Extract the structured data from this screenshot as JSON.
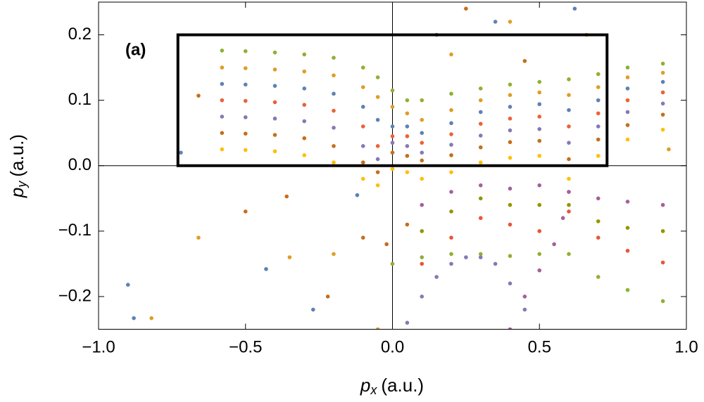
{
  "chart_data": {
    "type": "scatter",
    "panel_label": "(a)",
    "xlabel": [
      "p",
      "x",
      "(a.u.)"
    ],
    "ylabel": [
      "p",
      "y",
      "(a.u.)"
    ],
    "xlim": [
      -1,
      1
    ],
    "ylim": [
      -0.25,
      0.25
    ],
    "xticks": [
      {
        "value": -1,
        "label": "−1.0"
      },
      {
        "value": -0.5,
        "label": "−0.5"
      },
      {
        "value": 0,
        "label": "0.0"
      },
      {
        "value": 0.5,
        "label": "0.5"
      },
      {
        "value": 1,
        "label": "1.0"
      }
    ],
    "yticks": [
      {
        "value": -0.2,
        "label": "−0.2"
      },
      {
        "value": -0.1,
        "label": "−0.1"
      },
      {
        "value": 0,
        "label": "0.0"
      },
      {
        "value": 0.1,
        "label": "0.1"
      },
      {
        "value": 0.2,
        "label": "0.2"
      }
    ],
    "box": {
      "x": [
        -0.73,
        0.73
      ],
      "y": [
        0,
        0.2
      ]
    },
    "series": [
      {
        "color": "#8fb032",
        "x": [
          -0.58,
          -0.5,
          -0.4,
          -0.3,
          -0.2,
          -0.1,
          -0.05,
          0.0,
          0.05,
          0.1,
          0.2,
          0.3,
          0.4,
          0.5,
          0.6,
          0.7,
          0.8,
          0.92
        ],
        "values": [
          0.176,
          0.175,
          0.173,
          0.17,
          0.165,
          0.15,
          0.135,
          0.115,
          0.1,
          0.1,
          0.11,
          0.118,
          0.124,
          0.128,
          0.132,
          0.14,
          0.15,
          0.156
        ]
      },
      {
        "color": "#e19c24",
        "x": [
          -0.58,
          -0.5,
          -0.4,
          -0.3,
          -0.2,
          -0.1,
          -0.05,
          0.0,
          0.05,
          0.1,
          0.2,
          0.3,
          0.4,
          0.5,
          0.6,
          0.7,
          0.8,
          0.92
        ],
        "values": [
          0.15,
          0.149,
          0.147,
          0.144,
          0.138,
          0.12,
          0.105,
          0.09,
          0.08,
          0.07,
          0.085,
          0.1,
          0.108,
          0.112,
          0.108,
          0.12,
          0.135,
          0.142
        ]
      },
      {
        "color": "#5e81b5",
        "x": [
          -0.58,
          -0.5,
          -0.4,
          -0.3,
          -0.2,
          -0.1,
          -0.05,
          0.0,
          0.05,
          0.1,
          0.2,
          0.3,
          0.4,
          0.5,
          0.6,
          0.7,
          0.8,
          0.92
        ],
        "values": [
          0.125,
          0.124,
          0.122,
          0.118,
          0.11,
          0.09,
          0.07,
          0.06,
          0.06,
          0.05,
          0.065,
          0.082,
          0.09,
          0.094,
          0.085,
          0.1,
          0.118,
          0.128
        ]
      },
      {
        "color": "#eb6235",
        "x": [
          -0.58,
          -0.5,
          -0.4,
          -0.3,
          -0.2,
          -0.1,
          -0.05,
          0.0,
          0.05,
          0.1,
          0.2,
          0.3,
          0.4,
          0.5,
          0.6,
          0.7,
          0.8,
          0.92
        ],
        "values": [
          0.1,
          0.099,
          0.097,
          0.093,
          0.084,
          0.06,
          0.03,
          0.045,
          0.045,
          0.035,
          0.048,
          0.064,
          0.072,
          0.075,
          0.06,
          0.08,
          0.1,
          0.112
        ]
      },
      {
        "color": "#8778b3",
        "x": [
          -0.58,
          -0.5,
          -0.4,
          -0.3,
          -0.2,
          -0.1,
          -0.05,
          0.0,
          0.05,
          0.1,
          0.2,
          0.3,
          0.4,
          0.5,
          0.6,
          0.7,
          0.8,
          0.92
        ],
        "values": [
          0.075,
          0.074,
          0.072,
          0.068,
          0.058,
          0.03,
          0.01,
          0.035,
          0.03,
          0.02,
          0.032,
          0.046,
          0.054,
          0.056,
          0.035,
          0.06,
          0.082,
          0.095
        ]
      },
      {
        "color": "#c56e1a",
        "x": [
          -0.58,
          -0.5,
          -0.4,
          -0.3,
          -0.2,
          -0.1,
          -0.05,
          0.0,
          0.05,
          0.1,
          0.2,
          0.3,
          0.4,
          0.5,
          0.6,
          0.7,
          0.8,
          0.92
        ],
        "values": [
          0.05,
          0.049,
          0.047,
          0.042,
          0.03,
          0.005,
          -0.01,
          0.02,
          0.015,
          0.008,
          0.016,
          0.028,
          0.036,
          0.038,
          0.01,
          0.04,
          0.062,
          0.078
        ]
      },
      {
        "color": "#ffbf00",
        "x": [
          -0.58,
          -0.5,
          -0.4,
          -0.3,
          -0.2,
          -0.1,
          -0.05,
          0.0,
          0.05,
          0.1,
          0.2,
          0.3,
          0.4,
          0.5,
          0.6,
          0.7,
          0.8,
          0.92
        ],
        "values": [
          0.025,
          0.024,
          0.022,
          0.016,
          0.005,
          -0.02,
          -0.03,
          -0.005,
          -0.01,
          -0.02,
          -0.01,
          0.005,
          0.012,
          0.015,
          -0.02,
          0.015,
          0.04,
          0.055
        ]
      },
      {
        "color": "#a5609d",
        "x": [
          0.1,
          0.2,
          0.3,
          0.4,
          0.5,
          0.6,
          0.7,
          0.8,
          0.92
        ],
        "values": [
          -0.06,
          -0.04,
          -0.03,
          -0.035,
          -0.03,
          -0.04,
          -0.05,
          -0.055,
          -0.06
        ]
      },
      {
        "color": "#929600",
        "x": [
          0.1,
          0.2,
          0.3,
          0.4,
          0.5,
          0.6,
          0.7,
          0.8,
          0.92
        ],
        "values": [
          -0.1,
          -0.07,
          -0.05,
          -0.06,
          -0.06,
          -0.06,
          -0.085,
          -0.095,
          -0.1
        ]
      },
      {
        "color": "#e95536",
        "x": [
          0.1,
          0.2,
          0.3,
          0.4,
          0.5,
          0.6,
          0.7,
          0.8,
          0.92
        ],
        "values": [
          -0.15,
          -0.11,
          -0.08,
          -0.09,
          -0.1,
          -0.07,
          -0.11,
          -0.13,
          -0.148
        ]
      },
      {
        "color": "#8fb032",
        "x": [
          0.0,
          0.1,
          0.2,
          0.3,
          0.4,
          0.5,
          0.6,
          0.7,
          0.8,
          0.92
        ],
        "values": [
          -0.15,
          -0.14,
          -0.135,
          -0.135,
          -0.138,
          -0.135,
          -0.135,
          -0.17,
          -0.19,
          -0.207
        ]
      },
      {
        "color": "#8778b3",
        "x": [
          0.05,
          0.1,
          0.15,
          0.2,
          0.25,
          0.3,
          0.35,
          0.4,
          0.45
        ],
        "values": [
          -0.24,
          -0.2,
          -0.17,
          -0.15,
          -0.14,
          -0.14,
          -0.15,
          -0.18,
          -0.22
        ]
      },
      {
        "color": "#a5609d",
        "x": [
          0.4,
          0.45,
          0.5,
          0.55,
          0.58,
          0.6
        ],
        "values": [
          -0.25,
          -0.2,
          -0.16,
          -0.12,
          -0.08,
          -0.04
        ]
      },
      {
        "color": "#5e81b5",
        "x": [
          -0.9,
          -0.88,
          -0.72,
          -0.43,
          -0.27,
          -0.12,
          0.15,
          0.35,
          0.62
        ],
        "values": [
          -0.182,
          -0.233,
          0.02,
          -0.158,
          -0.22,
          -0.045,
          0.2,
          0.22,
          0.24
        ]
      },
      {
        "color": "#e19c24",
        "x": [
          -0.82,
          -0.66,
          -0.35,
          -0.2,
          -0.05,
          0.2,
          0.4,
          0.66,
          0.94
        ],
        "values": [
          -0.233,
          -0.11,
          -0.14,
          -0.135,
          -0.25,
          0.17,
          0.22,
          0.2,
          0.025
        ]
      },
      {
        "color": "#c56e1a",
        "x": [
          -0.66,
          -0.5,
          -0.36,
          -0.22,
          -0.1,
          -0.02,
          0.05,
          0.25,
          0.45
        ],
        "values": [
          0.107,
          -0.07,
          -0.047,
          -0.2,
          -0.11,
          -0.12,
          -0.09,
          0.24,
          0.16
        ]
      }
    ]
  }
}
